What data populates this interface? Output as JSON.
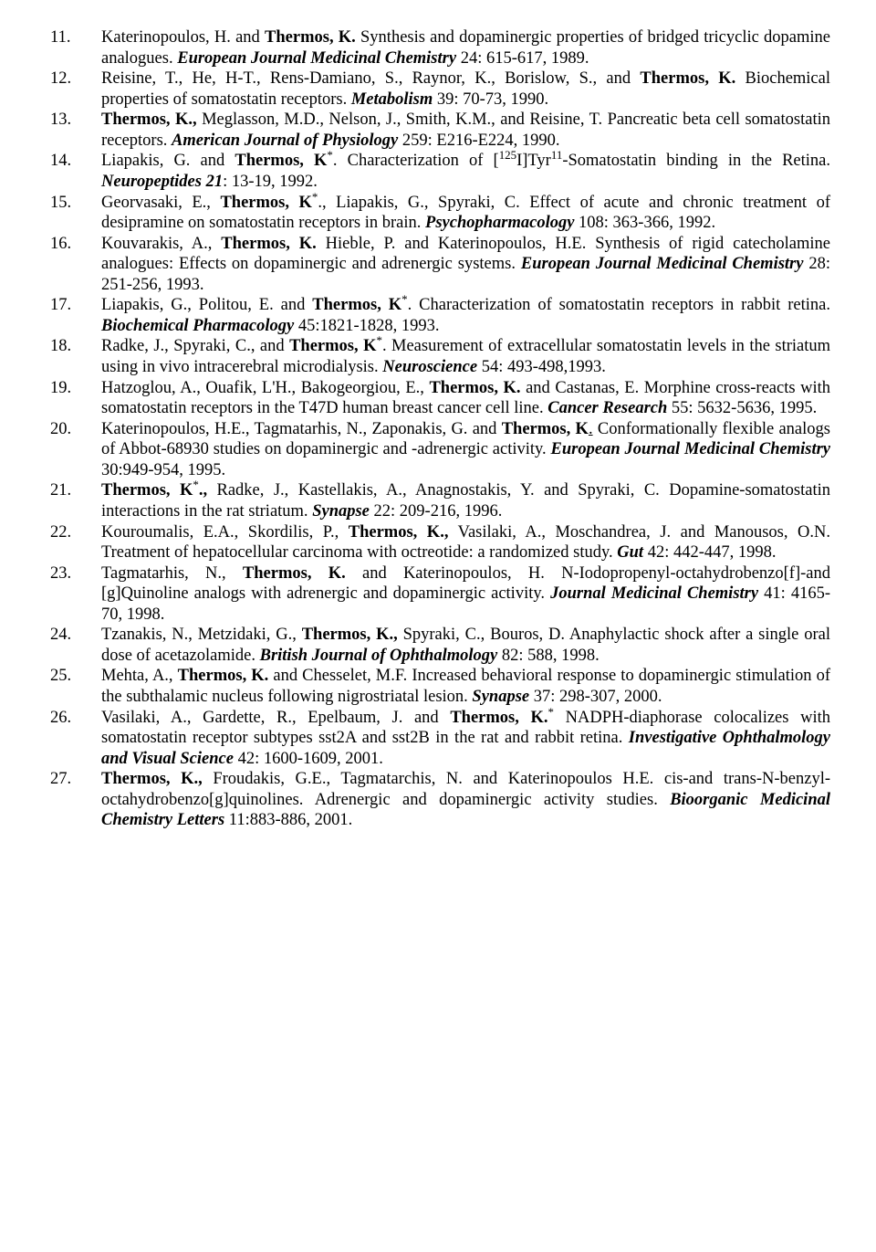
{
  "references": [
    {
      "n": "11.",
      "pre": "Katerinopoulos, H. and ",
      "boldAuthor": "Thermos, K.",
      "mid": " Synthesis and dopaminergic properties of bridged tricyclic dopamine analogues. ",
      "journal": "European Journal Medicinal Chemistry ",
      "post": " 24: 615-617, 1989."
    },
    {
      "n": "12.",
      "pre": "Reisine, T., He, H-T., Rens-Damiano, S., Raynor, K., Borislow, S., and ",
      "boldAuthor": "Thermos, K.",
      "mid": " Biochemical properties of somatostatin receptors. ",
      "journal": " Metabolism",
      "post": " 39: 70-73, 1990."
    },
    {
      "n": "13.",
      "pre": "",
      "boldAuthor": "Thermos, K.,",
      "mid": " Meglasson, M.D., Nelson, J., Smith, K.M., and Reisine, T. Pancreatic beta cell somatostatin receptors. ",
      "journal": "American  Journal of Physiology",
      "post": " 259: E216-E224, 1990."
    },
    {
      "n": "14.",
      "pre": "Liapakis, G. and ",
      "boldAuthor": "Thermos, K",
      "sup": "*",
      "mid": ". Characterization of [",
      "sup2pre": "125",
      "mid2": "I]Tyr",
      "sup2post": "11",
      "mid3": "-Somatostatin binding in the Retina. ",
      "journal": "Neuropeptides 21",
      "post": ": 13-19, 1992."
    },
    {
      "n": "15.",
      "pre": "Georvasaki, E., ",
      "boldAuthor": "Thermos, K",
      "sup": "*",
      "mid": "., Liapakis, G., Spyraki, C. Effect of acute and chronic treatment of desipramine on somatostatin receptors in brain. ",
      "journal": " Psychopharmacology",
      "post": " 108: 363-366, 1992."
    },
    {
      "n": "16.",
      "pre": "Kouvarakis, A., ",
      "boldAuthor": "Thermos, K.",
      "mid": " Hieble, P. and Katerinopoulos, H.E.  Synthesis of rigid catecholamine analogues:  Effects on dopaminergic and adrenergic systems. ",
      "journal": "European Journal Medicinal Chemistry",
      "post": " 28: 251-256, 1993."
    },
    {
      "n": "17.",
      "pre": "Liapakis, G., Politou, E. and ",
      "boldAuthor": "Thermos, K",
      "sup": "*",
      "mid": ". Characterization of somatostatin receptors in rabbit retina. ",
      "journal": " Biochemical Pharmacology",
      "post": " 45:1821-1828, 1993."
    },
    {
      "n": "18.",
      "pre": "Radke, J., Spyraki, C., and ",
      "boldAuthor": "Thermos, K",
      "sup": "*",
      "mid": ". Measurement of extracellular somatostatin levels in the striatum using in vivo intracerebral microdialysis. ",
      "journal": " Neuroscience ",
      "post": " 54: 493-498,1993."
    },
    {
      "n": "19.",
      "pre": "Hatzoglou, A., Ouafik, L'H., Bakogeorgiou, E., ",
      "boldAuthor": "Thermos, K.",
      "mid": " and Castanas, E. Morphine cross-reacts with somatostatin receptors in the T47D human breast cancer cell line. ",
      "journal": " Cancer Research",
      "post": " 55: 5632-5636, 1995."
    },
    {
      "n": "20.",
      "pre": "Katerinopoulos, H.E., Tagmatarhis, N., Zaponakis, G. and ",
      "boldAuthor": "Thermos, K",
      "underline": ".",
      "mid": " Conformationally flexible analogs of Abbot-68930 studies on dopaminergic and -adrenergic activity. ",
      "journal": "European Journal Medicinal Chemistry",
      "post": " 30:949-954, 1995."
    },
    {
      "n": "21.",
      "pre": "",
      "boldAuthor": "Thermos, K",
      "sup": "*",
      "boldPost": ".,",
      "mid": " Radke, J., Kastellakis, A., Anagnostakis, Y. and Spyraki, C. Dopamine-somatostatin interactions in the rat striatum. ",
      "journal": "Synapse ",
      "post": " 22: 209-216, 1996."
    },
    {
      "n": "22.",
      "pre": "Kouroumalis, E.A., Skordilis, P., ",
      "boldAuthor": "Thermos, K.,",
      "mid": " Vasilaki, A., Moschandrea, J. and Manousos, O.N. Treatment of hepatocellular carcinoma with octreotide: a randomized study. ",
      "journal": "Gut ",
      "post": "42: 442-447, 1998."
    },
    {
      "n": "23.",
      "pre": "Tagmatarhis, N., ",
      "boldAuthor": "Thermos, K.",
      "mid": " and Katerinopoulos, H.  N-Iodopropenyl-octahydrobenzo[f]-and [g]Quinoline analogs with adrenergic and dopaminergic activity. ",
      "journal": "Journal Medicinal Chemistry ",
      "post": "41: 4165-70, 1998."
    },
    {
      "n": "24.",
      "pre": "Tzanakis, N., Metzidaki, G., ",
      "boldAuthor": "Thermos, K.,",
      "mid": " Spyraki, C., Bouros, D. Anaphylactic shock after a single oral dose of acetazolamide. ",
      "journal": "British Journal of Ophthalmology",
      "post": " 82: 588, 1998."
    },
    {
      "n": "25.",
      "pre": "Mehta, A., ",
      "boldAuthor": "Thermos, K.",
      "mid": " and Chesselet, M.F. Increased behavioral response to dopaminergic stimulation of the subthalamic nucleus following nigrostriatal lesion. ",
      "journal": "Synapse",
      "post": " 37: 298-307, 2000."
    },
    {
      "n": "26.",
      "pre": "Vasilaki, A., Gardette, R., Epelbaum, J. and ",
      "boldAuthor": "Thermos, K.",
      "sup": "*",
      "mid": " NADPH-diaphorase colocalizes with somatostatin receptor subtypes sst2A and sst2B in the rat and rabbit retina. ",
      "journal": "Investigative Ophthalmology and Visual Science ",
      "post": " 42: 1600-1609, 2001."
    },
    {
      "n": "27.",
      "pre": "",
      "boldAuthor": "Thermos, K.,",
      "mid": " Froudakis, G.E., Tagmatarchis, N. and Katerinopoulos H.E. cis-and trans-N-benzyl-octahydrobenzo[g]quinolines. Adrenergic and dopaminergic activity studies. ",
      "journal": "Bioorganic Medicinal Chemistry Letters",
      "post": " 11:883-886, 2001."
    }
  ]
}
